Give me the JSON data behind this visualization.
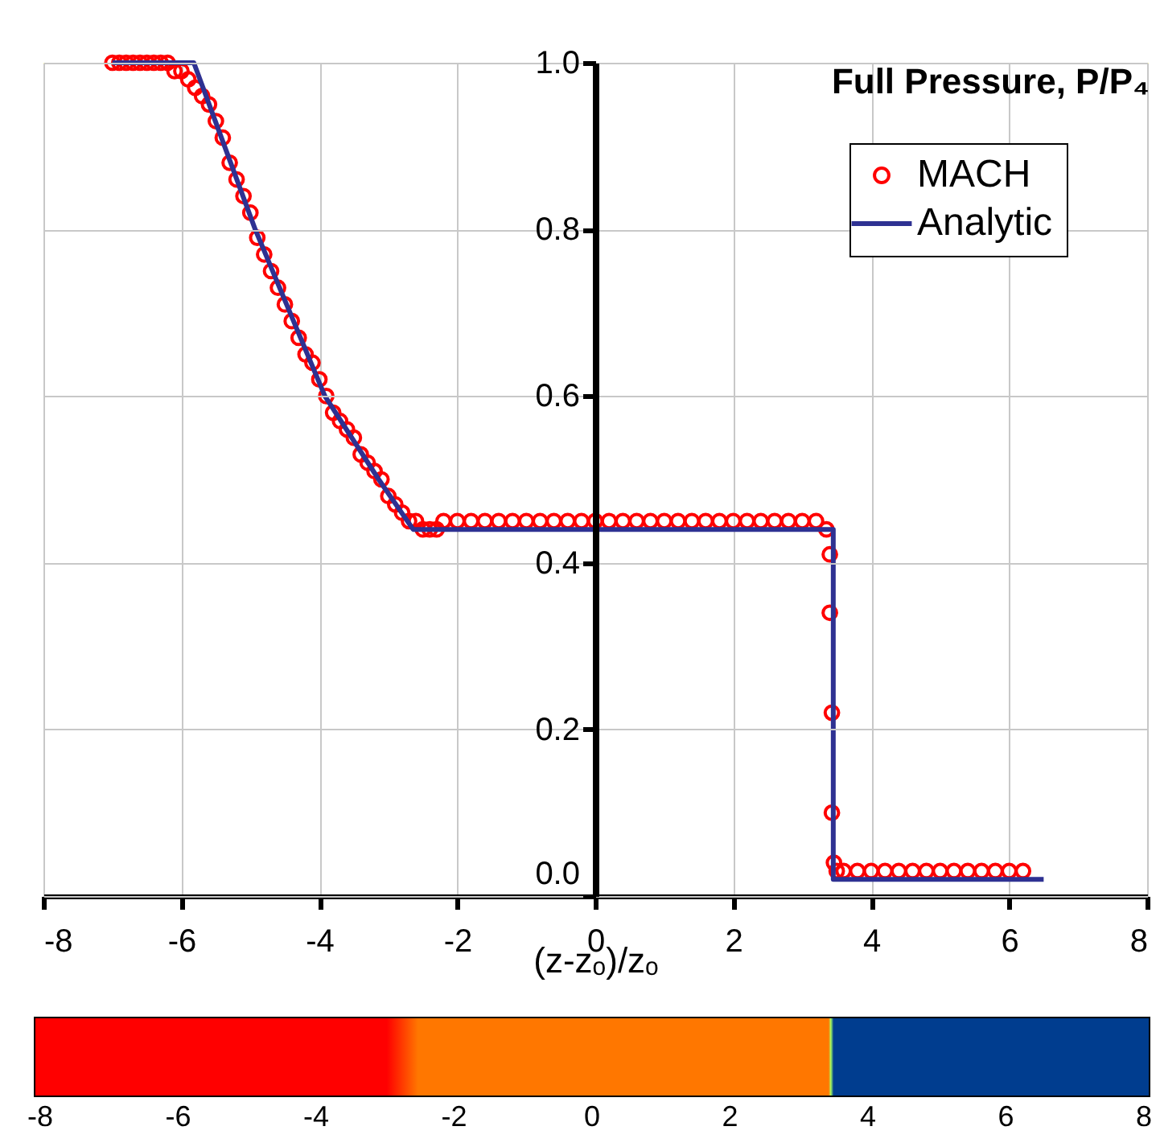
{
  "chart_data": [
    {
      "type": "scatter",
      "title": "Full Pressure, P/P₄",
      "xlabel": "(z-zₒ)/zₒ",
      "xlim": [
        -8,
        8
      ],
      "xticks": [
        -8,
        -6,
        -4,
        -2,
        0,
        2,
        4,
        6,
        8
      ],
      "ylim": [
        0,
        1
      ],
      "yticks": [
        {
          "value": 0,
          "label": "0.0"
        },
        0.2,
        0.4,
        0.6,
        0.8,
        {
          "value": 1,
          "label": "1.0"
        }
      ],
      "x2lim": [
        -8,
        8
      ],
      "x2ticks": [
        -8,
        -6,
        -4,
        -2,
        0,
        2,
        4,
        6,
        8
      ],
      "grid": true,
      "legend": "top right",
      "marker": "circle",
      "series": [
        {
          "name": "MACH",
          "color": "#ff0000",
          "x": [
            -7.0,
            -6.9,
            -6.8,
            -6.7,
            -6.6,
            -6.5,
            -6.4,
            -6.3,
            -6.2,
            -6.1,
            -6.0,
            -5.9,
            -5.8,
            -5.7,
            -5.6,
            -5.5,
            -5.4,
            -5.3,
            -5.2,
            -5.1,
            -5.0,
            -4.9,
            -4.8,
            -4.7,
            -4.6,
            -4.5,
            -4.4,
            -4.3,
            -4.2,
            -4.1,
            -4.0,
            -3.9,
            -3.8,
            -3.7,
            -3.6,
            -3.5,
            -3.4,
            -3.3,
            -3.2,
            -3.1,
            -3.0,
            -2.9,
            -2.8,
            -2.7,
            -2.6,
            -2.5,
            -2.4,
            -2.3,
            -2.2,
            -2.0,
            -1.8,
            -1.6,
            -1.4,
            -1.2,
            -1.0,
            -0.8,
            -0.6,
            -0.4,
            -0.2,
            0.0,
            0.2,
            0.4,
            0.6,
            0.8,
            1.0,
            1.2,
            1.4,
            1.6,
            1.8,
            2.0,
            2.2,
            2.4,
            2.6,
            2.8,
            3.0,
            3.2,
            3.35,
            3.4,
            3.4,
            3.43,
            3.43,
            3.46,
            3.5,
            3.6,
            3.8,
            4.0,
            4.2,
            4.4,
            4.6,
            4.8,
            5.0,
            5.2,
            5.4,
            5.6,
            5.8,
            6.0,
            6.2
          ],
          "values": [
            1,
            1,
            1,
            1,
            1,
            1,
            1,
            1,
            1,
            0.99,
            0.99,
            0.98,
            0.97,
            0.96,
            0.95,
            0.93,
            0.91,
            0.88,
            0.86,
            0.84,
            0.82,
            0.79,
            0.77,
            0.75,
            0.73,
            0.71,
            0.69,
            0.67,
            0.65,
            0.64,
            0.62,
            0.6,
            0.58,
            0.57,
            0.56,
            0.55,
            0.53,
            0.52,
            0.51,
            0.5,
            0.48,
            0.47,
            0.46,
            0.45,
            0.45,
            0.44,
            0.44,
            0.44,
            0.45,
            0.45,
            0.45,
            0.45,
            0.45,
            0.45,
            0.45,
            0.45,
            0.45,
            0.45,
            0.45,
            0.45,
            0.45,
            0.45,
            0.45,
            0.45,
            0.45,
            0.45,
            0.45,
            0.45,
            0.45,
            0.45,
            0.45,
            0.45,
            0.45,
            0.45,
            0.45,
            0.45,
            0.44,
            0.41,
            0.34,
            0.22,
            0.1,
            0.04,
            0.03,
            0.03,
            0.03,
            0.03,
            0.03,
            0.03,
            0.03,
            0.03,
            0.03,
            0.03,
            0.03,
            0.03,
            0.03,
            0.03,
            0.03
          ]
        },
        {
          "name": "Analytic",
          "type": "line",
          "color": "#2e3192",
          "marker": "none",
          "x": [
            -7.0,
            -5.82,
            -4.93,
            -3.92,
            -3.14,
            -2.64,
            3.45,
            3.45,
            6.5
          ],
          "values": [
            1,
            1,
            0.8,
            0.6,
            0.5,
            0.44,
            0.44,
            0.02,
            0.02
          ]
        }
      ]
    }
  ]
}
